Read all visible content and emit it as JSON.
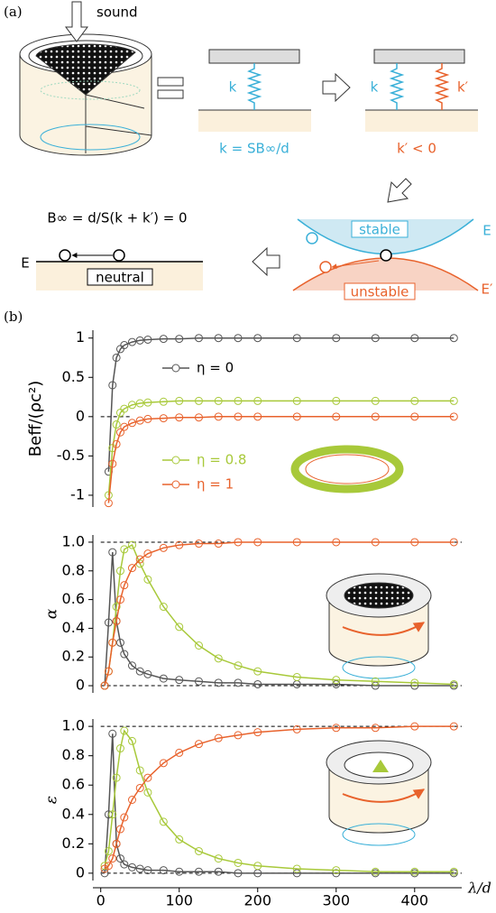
{
  "diagram": {
    "panel_a": "(a)",
    "sound": "sound",
    "k_left": "k",
    "k_formula": "k = SB∞/d",
    "k_right": "k",
    "k_prime": "k′",
    "k_prime_cond": "k′ < 0",
    "b_formula": "B∞ = d/S(k + k′) = 0",
    "e_neutral": "E",
    "neutral": "neutral",
    "stable": "stable",
    "unstable": "unstable",
    "e_stable": "E",
    "e_unstable": "E′",
    "panel_b": "(b)"
  },
  "chart_data": [
    {
      "type": "line",
      "ylabel": "Beff/(ρc²)",
      "x": [
        10,
        15,
        20,
        25,
        30,
        40,
        50,
        60,
        80,
        100,
        125,
        150,
        175,
        200,
        250,
        300,
        350,
        400,
        450
      ],
      "xlim": [
        -10,
        460
      ],
      "ylim": [
        -1.15,
        1.1
      ],
      "yticks": [
        -1,
        -0.5,
        0,
        0.5,
        1
      ],
      "ref_lines": [
        0
      ],
      "series": [
        {
          "name": "η = 0",
          "color": "#555555",
          "values": [
            -0.7,
            0.4,
            0.75,
            0.86,
            0.91,
            0.95,
            0.97,
            0.98,
            0.99,
            0.99,
            1,
            1,
            1,
            1,
            1,
            1,
            1,
            1,
            1
          ]
        },
        {
          "name": "η = 0.8",
          "color": "#a8c93a",
          "values": [
            -1.0,
            -0.4,
            -0.1,
            0.05,
            0.1,
            0.15,
            0.17,
            0.18,
            0.19,
            0.2,
            0.2,
            0.2,
            0.2,
            0.2,
            0.2,
            0.2,
            0.2,
            0.2,
            0.2
          ]
        },
        {
          "name": "η = 1",
          "color": "#e8622c",
          "values": [
            -1.1,
            -0.6,
            -0.35,
            -0.2,
            -0.13,
            -0.08,
            -0.05,
            -0.03,
            -0.02,
            -0.01,
            -0.01,
            0,
            0,
            0,
            0,
            0,
            0,
            0,
            0
          ]
        }
      ]
    },
    {
      "type": "line",
      "ylabel": "α",
      "x": [
        5,
        10,
        15,
        20,
        25,
        30,
        40,
        50,
        60,
        80,
        100,
        125,
        150,
        175,
        200,
        250,
        300,
        350,
        400,
        450
      ],
      "xlim": [
        -10,
        460
      ],
      "ylim": [
        -0.05,
        1.05
      ],
      "yticks": [
        0,
        {
          "value": 0.2,
          "label": "0.2"
        },
        {
          "value": 0.4,
          "label": "0.4"
        },
        {
          "value": 0.6,
          "label": "0.6"
        },
        {
          "value": 0.8,
          "label": "0.8"
        },
        {
          "value": 1,
          "label": "1.0"
        }
      ],
      "ref_lines": [
        0,
        1
      ],
      "series": [
        {
          "color": "#555555",
          "values": [
            0,
            0.44,
            0.93,
            0.45,
            0.3,
            0.22,
            0.14,
            0.1,
            0.08,
            0.05,
            0.04,
            0.03,
            0.02,
            0.02,
            0.01,
            0.01,
            0.01,
            0,
            0,
            0
          ]
        },
        {
          "color": "#a8c93a",
          "values": [
            0,
            0.1,
            0.3,
            0.55,
            0.8,
            0.95,
            0.98,
            0.85,
            0.74,
            0.55,
            0.41,
            0.28,
            0.19,
            0.14,
            0.1,
            0.06,
            0.04,
            0.03,
            0.02,
            0.01
          ]
        },
        {
          "color": "#e8622c",
          "values": [
            0,
            0.1,
            0.3,
            0.45,
            0.6,
            0.7,
            0.82,
            0.88,
            0.92,
            0.96,
            0.98,
            0.99,
            0.99,
            1,
            1,
            1,
            1,
            1,
            1,
            1
          ]
        }
      ]
    },
    {
      "type": "line",
      "ylabel": "ε",
      "xlabel": "λ/d",
      "x": [
        5,
        10,
        15,
        20,
        25,
        30,
        40,
        50,
        60,
        80,
        100,
        125,
        150,
        175,
        200,
        250,
        300,
        350,
        400,
        450
      ],
      "xlim": [
        -10,
        460
      ],
      "xticks": [
        0,
        100,
        200,
        300,
        400
      ],
      "ylim": [
        -0.05,
        1.05
      ],
      "yticks": [
        0,
        {
          "value": 0.2,
          "label": "0.2"
        },
        {
          "value": 0.4,
          "label": "0.4"
        },
        {
          "value": 0.6,
          "label": "0.6"
        },
        {
          "value": 0.8,
          "label": "0.8"
        },
        {
          "value": 1,
          "label": "1.0"
        }
      ],
      "ref_lines": [
        0,
        1
      ],
      "series": [
        {
          "color": "#555555",
          "values": [
            0,
            0.4,
            0.95,
            0.2,
            0.1,
            0.06,
            0.04,
            0.03,
            0.02,
            0.02,
            0.01,
            0.01,
            0.01,
            0,
            0,
            0,
            0,
            0,
            0,
            0
          ]
        },
        {
          "color": "#a8c93a",
          "values": [
            0.05,
            0.15,
            0.4,
            0.65,
            0.85,
            0.97,
            0.9,
            0.7,
            0.55,
            0.35,
            0.23,
            0.15,
            0.1,
            0.07,
            0.05,
            0.03,
            0.02,
            0.01,
            0.01,
            0.01
          ]
        },
        {
          "color": "#e8622c",
          "values": [
            0.03,
            0.05,
            0.1,
            0.2,
            0.3,
            0.38,
            0.5,
            0.58,
            0.65,
            0.75,
            0.82,
            0.88,
            0.92,
            0.94,
            0.96,
            0.98,
            0.99,
            0.99,
            1,
            1
          ]
        }
      ]
    }
  ]
}
